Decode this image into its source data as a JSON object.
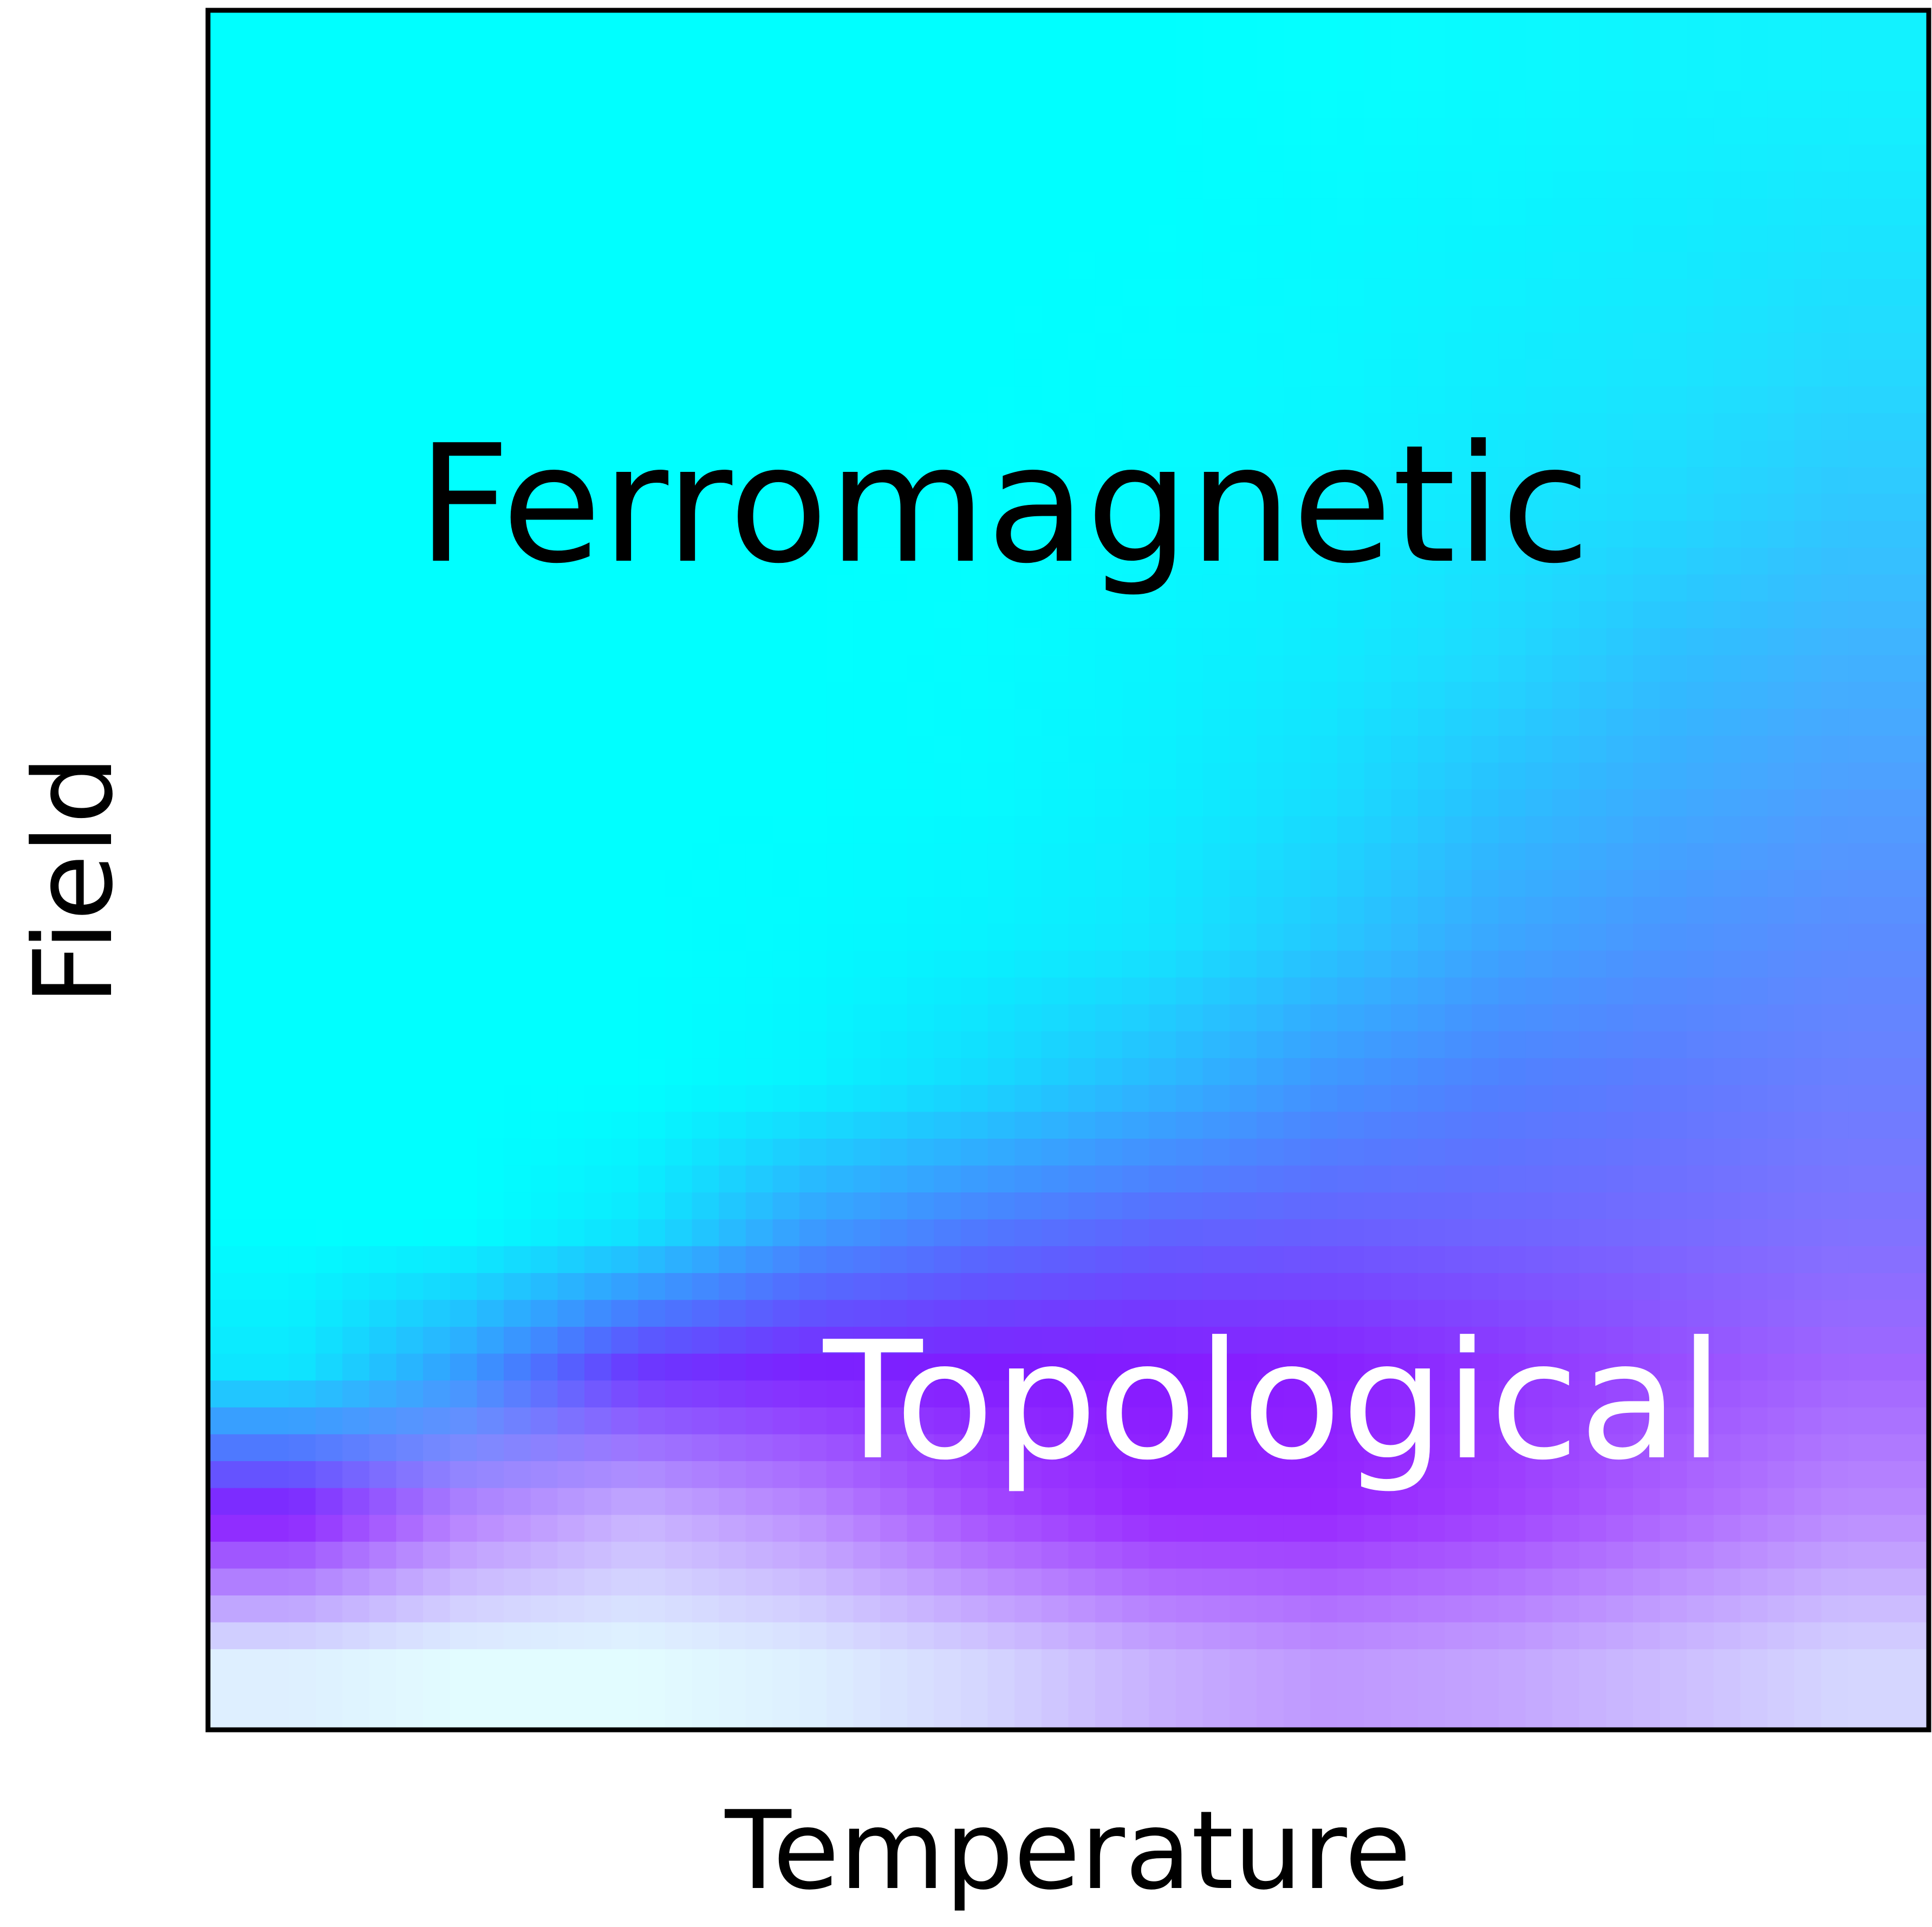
{
  "chart_data": {
    "type": "heatmap",
    "title": "",
    "xlabel": "Temperature",
    "ylabel": "Field",
    "axis_ticks": "none",
    "grid": false,
    "annotations": [
      {
        "text": "Ferromagnetic",
        "color": "#000000"
      },
      {
        "text": "Topological",
        "color": "#ffffff"
      }
    ],
    "colors": {
      "ferromagnetic": "#00ffff",
      "topological": "#8a00ff",
      "other": "#e2fcff"
    },
    "grid_note_rows": "rows ordered from high field (top) to low field (bottom); columns from low to high temperature",
    "ferromagnetic_fraction": [
      [
        1,
        1,
        1,
        1,
        1,
        1,
        0.98,
        0.95,
        0.92,
        0.9
      ],
      [
        1,
        1,
        1,
        1,
        1,
        1,
        0.97,
        0.94,
        0.9,
        0.85
      ],
      [
        1,
        1,
        1,
        1,
        1,
        0.98,
        0.95,
        0.9,
        0.85,
        0.78
      ],
      [
        1,
        1,
        1,
        1,
        0.99,
        0.97,
        0.93,
        0.87,
        0.8,
        0.7
      ],
      [
        1,
        1,
        1,
        1,
        0.98,
        0.95,
        0.9,
        0.8,
        0.7,
        0.6
      ],
      [
        1,
        1,
        1,
        1,
        0.97,
        0.93,
        0.85,
        0.72,
        0.6,
        0.5
      ],
      [
        1,
        1,
        1,
        0.98,
        0.95,
        0.88,
        0.75,
        0.6,
        0.5,
        0.42
      ],
      [
        1,
        1,
        1,
        0.95,
        0.85,
        0.7,
        0.55,
        0.45,
        0.38,
        0.33
      ],
      [
        1,
        1,
        0.9,
        0.6,
        0.45,
        0.35,
        0.3,
        0.28,
        0.25,
        0.22
      ],
      [
        0.9,
        0.6,
        0.2,
        0.1,
        0.08,
        0.06,
        0.05,
        0.05,
        0.05,
        0.05
      ],
      [
        0.05,
        0,
        0,
        0,
        0,
        0,
        0,
        0,
        0,
        0
      ],
      [
        0,
        0,
        0,
        0,
        0,
        0,
        0,
        0,
        0,
        0
      ]
    ],
    "topological_fraction": [
      [
        0,
        0,
        0,
        0,
        0,
        0,
        0,
        0.02,
        0.04,
        0.05
      ],
      [
        0,
        0,
        0,
        0,
        0,
        0,
        0.02,
        0.04,
        0.07,
        0.1
      ],
      [
        0,
        0,
        0,
        0,
        0,
        0.01,
        0.03,
        0.07,
        0.1,
        0.15
      ],
      [
        0,
        0,
        0,
        0,
        0,
        0.02,
        0.05,
        0.1,
        0.15,
        0.22
      ],
      [
        0,
        0,
        0,
        0,
        0.01,
        0.04,
        0.08,
        0.15,
        0.25,
        0.3
      ],
      [
        0,
        0,
        0,
        0,
        0.02,
        0.06,
        0.13,
        0.25,
        0.33,
        0.38
      ],
      [
        0,
        0,
        0,
        0.02,
        0.05,
        0.1,
        0.22,
        0.35,
        0.42,
        0.45
      ],
      [
        0,
        0,
        0,
        0.05,
        0.15,
        0.28,
        0.42,
        0.5,
        0.52,
        0.5
      ],
      [
        0,
        0,
        0.1,
        0.38,
        0.52,
        0.6,
        0.62,
        0.6,
        0.58,
        0.55
      ],
      [
        0.1,
        0.4,
        0.8,
        0.88,
        0.9,
        0.9,
        0.88,
        0.8,
        0.7,
        0.6
      ],
      [
        0.9,
        0.5,
        0.3,
        0.45,
        0.7,
        0.85,
        0.85,
        0.75,
        0.6,
        0.45
      ],
      [
        0.05,
        0,
        0,
        0.05,
        0.15,
        0.3,
        0.4,
        0.35,
        0.25,
        0.15
      ]
    ]
  }
}
